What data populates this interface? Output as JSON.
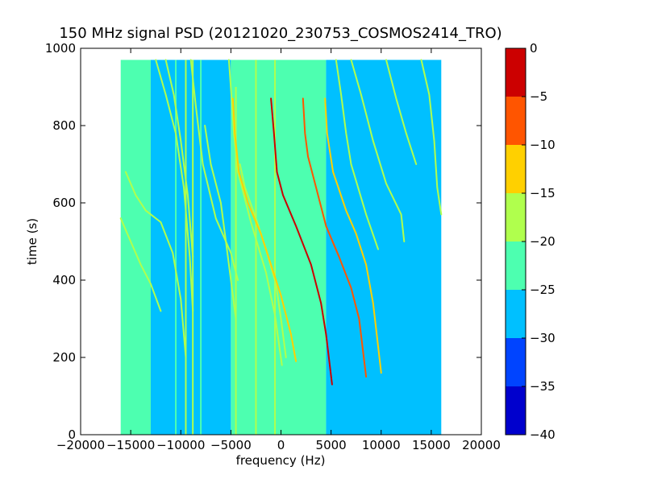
{
  "chart_data": {
    "type": "heatmap",
    "title": "150 MHz signal PSD (20121020_230753_COSMOS2414_TRO)",
    "xlabel": "frequency (Hz)",
    "ylabel": "time (s)",
    "xlim": [
      -20000,
      20000
    ],
    "ylim": [
      0,
      1000
    ],
    "x_ticks": [
      -20000,
      -15000,
      -10000,
      -5000,
      0,
      5000,
      10000,
      15000,
      20000
    ],
    "x_tick_labels": [
      "−20000",
      "−15000",
      "−10000",
      "−5000",
      "0",
      "5000",
      "10000",
      "15000",
      "20000"
    ],
    "y_ticks": [
      0,
      200,
      400,
      600,
      800,
      1000
    ],
    "y_tick_labels": [
      "0",
      "200",
      "400",
      "600",
      "800",
      "1000"
    ],
    "data_extent": {
      "x": [
        -16000,
        16000
      ],
      "y": [
        0,
        970
      ]
    },
    "colorbar": {
      "range": [
        -40,
        0
      ],
      "ticks": [
        0,
        -5,
        -10,
        -15,
        -20,
        -25,
        -30,
        -35,
        -40
      ],
      "tick_labels": [
        "0",
        "−5",
        "−10",
        "−15",
        "−20",
        "−25",
        "−30",
        "−35",
        "−40"
      ],
      "levels": [
        {
          "from": -40,
          "to": -35,
          "color": "#0000cd"
        },
        {
          "from": -35,
          "to": -30,
          "color": "#0044ff"
        },
        {
          "from": -30,
          "to": -25,
          "color": "#00c0ff"
        },
        {
          "from": -25,
          "to": -20,
          "color": "#4dffb0"
        },
        {
          "from": -20,
          "to": -15,
          "color": "#b0ff4d"
        },
        {
          "from": -15,
          "to": -10,
          "color": "#ffd000"
        },
        {
          "from": -10,
          "to": -5,
          "color": "#ff5500"
        },
        {
          "from": -5,
          "to": 0,
          "color": "#cc0000"
        }
      ]
    },
    "background_regions": [
      {
        "x": [
          -16000,
          -13000
        ],
        "level": -22,
        "color": "#4dffb0"
      },
      {
        "x": [
          -13000,
          -5000
        ],
        "level": -27,
        "color": "#00c0ff"
      },
      {
        "x": [
          -5000,
          4500
        ],
        "level": -23,
        "color": "#4dffb0"
      },
      {
        "x": [
          4500,
          16000
        ],
        "level": -27,
        "color": "#00c0ff"
      }
    ],
    "series": [
      {
        "points": [
          [
            -16000,
            560
          ],
          [
            -15000,
            500
          ],
          [
            -14000,
            440
          ],
          [
            -13000,
            390
          ],
          [
            -12000,
            320
          ]
        ],
        "level": -17
      },
      {
        "points": [
          [
            -15500,
            680
          ],
          [
            -14500,
            620
          ],
          [
            -13500,
            580
          ],
          [
            -12000,
            550
          ],
          [
            -10800,
            470
          ],
          [
            -10000,
            350
          ],
          [
            -9500,
            200
          ]
        ],
        "level": -17
      },
      {
        "points": [
          [
            -12500,
            970
          ],
          [
            -11500,
            880
          ],
          [
            -10500,
            780
          ],
          [
            -9700,
            640
          ],
          [
            -9100,
            460
          ],
          [
            -8800,
            320
          ]
        ],
        "level": -17
      },
      {
        "points": [
          [
            -11500,
            970
          ],
          [
            -10700,
            880
          ],
          [
            -10000,
            760
          ],
          [
            -9300,
            620
          ],
          [
            -8800,
            460
          ]
        ],
        "level": -17
      },
      {
        "points": [
          [
            -9000,
            970
          ],
          [
            -8500,
            850
          ],
          [
            -7800,
            700
          ],
          [
            -6500,
            560
          ],
          [
            -5000,
            470
          ],
          [
            -4300,
            400
          ]
        ],
        "level": -17
      },
      {
        "points": [
          [
            -7600,
            800
          ],
          [
            -7000,
            700
          ],
          [
            -6000,
            600
          ],
          [
            -5500,
            500
          ],
          [
            -5000,
            400
          ],
          [
            -4500,
            300
          ]
        ],
        "level": -17
      },
      {
        "points": [
          [
            -5200,
            970
          ],
          [
            -4900,
            860
          ],
          [
            -4700,
            780
          ],
          [
            -4300,
            680
          ],
          [
            -3000,
            550
          ],
          [
            -1500,
            420
          ],
          [
            -600,
            310
          ],
          [
            100,
            180
          ]
        ],
        "level": -17
      },
      {
        "points": [
          [
            -4100,
            700
          ],
          [
            -3600,
            640
          ],
          [
            -2500,
            560
          ],
          [
            -1500,
            480
          ],
          [
            -500,
            390
          ],
          [
            0,
            300
          ],
          [
            500,
            200
          ]
        ],
        "level": -17
      },
      {
        "points": [
          [
            -4800,
            870
          ],
          [
            -4600,
            780
          ],
          [
            -4200,
            680
          ],
          [
            -3300,
            600
          ],
          [
            -2000,
            520
          ],
          [
            -1000,
            440
          ],
          [
            0,
            360
          ],
          [
            1000,
            260
          ],
          [
            1500,
            190
          ]
        ],
        "level": -12
      },
      {
        "points": [
          [
            -1000,
            870
          ],
          [
            -700,
            780
          ],
          [
            -400,
            680
          ],
          [
            200,
            620
          ],
          [
            1500,
            540
          ],
          [
            3000,
            440
          ],
          [
            4000,
            340
          ],
          [
            4500,
            260
          ],
          [
            5100,
            130
          ]
        ],
        "level": -3
      },
      {
        "points": [
          [
            2200,
            870
          ],
          [
            2400,
            780
          ],
          [
            2700,
            720
          ],
          [
            3500,
            640
          ],
          [
            4500,
            540
          ],
          [
            5800,
            460
          ],
          [
            7000,
            380
          ],
          [
            7800,
            300
          ],
          [
            8500,
            150
          ]
        ],
        "level": -8
      },
      {
        "points": [
          [
            4400,
            870
          ],
          [
            4600,
            780
          ],
          [
            5200,
            680
          ],
          [
            6500,
            580
          ],
          [
            7500,
            520
          ],
          [
            8500,
            440
          ],
          [
            9200,
            340
          ],
          [
            10000,
            160
          ]
        ],
        "level": -13
      },
      {
        "points": [
          [
            5500,
            970
          ],
          [
            6000,
            880
          ],
          [
            6500,
            780
          ],
          [
            7000,
            700
          ],
          [
            8500,
            570
          ],
          [
            9700,
            480
          ]
        ],
        "level": -17
      },
      {
        "points": [
          [
            7000,
            970
          ],
          [
            8000,
            880
          ],
          [
            9200,
            760
          ],
          [
            10500,
            650
          ],
          [
            12000,
            570
          ],
          [
            12300,
            500
          ]
        ],
        "level": -17
      },
      {
        "points": [
          [
            10500,
            970
          ],
          [
            11500,
            870
          ],
          [
            12500,
            780
          ],
          [
            13500,
            700
          ]
        ],
        "level": -17
      },
      {
        "points": [
          [
            14000,
            970
          ],
          [
            14800,
            880
          ],
          [
            15300,
            760
          ],
          [
            15600,
            640
          ],
          [
            16000,
            570
          ]
        ],
        "level": -17
      }
    ],
    "vertical_lines": [
      {
        "x": -10500,
        "y": [
          0,
          970
        ],
        "level": -22
      },
      {
        "x": -9500,
        "y": [
          0,
          970
        ],
        "level": -17
      },
      {
        "x": -8800,
        "y": [
          0,
          970
        ],
        "level": -17
      },
      {
        "x": -8000,
        "y": [
          0,
          970
        ],
        "level": -20
      },
      {
        "x": -4500,
        "y": [
          0,
          900
        ],
        "level": -17
      },
      {
        "x": -2500,
        "y": [
          0,
          970
        ],
        "level": -17
      },
      {
        "x": -600,
        "y": [
          0,
          970
        ],
        "level": -17
      }
    ]
  }
}
